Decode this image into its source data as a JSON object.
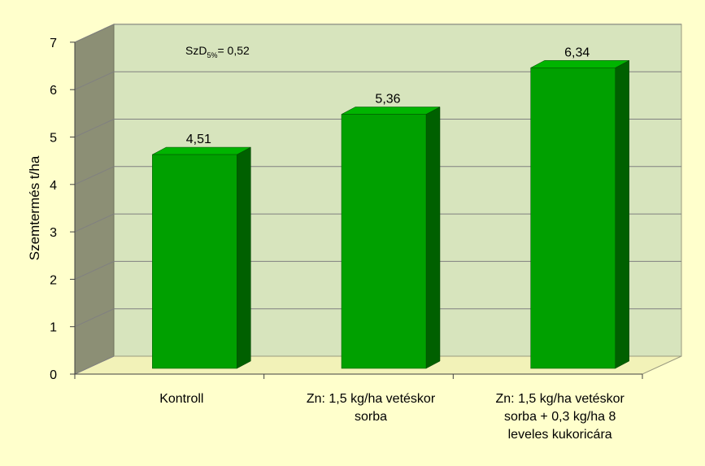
{
  "chart_data": {
    "type": "bar",
    "style": "3d-column",
    "title": "",
    "ylabel": "Szemtermés t/ha",
    "xlabel": "",
    "ylim": [
      0,
      7
    ],
    "yticks": [
      "0",
      "1",
      "2",
      "3",
      "4",
      "5",
      "6",
      "7"
    ],
    "grid": true,
    "legend": "none",
    "categories": [
      [
        "Kontroll"
      ],
      [
        "Zn: 1,5 kg/ha vetéskor",
        "sorba"
      ],
      [
        "Zn: 1,5 kg/ha vetéskor",
        "sorba + 0,3 kg/ha 8",
        "leveles kukoricára"
      ]
    ],
    "values": [
      4.51,
      5.36,
      6.34
    ],
    "value_labels": [
      "4,51",
      "5,36",
      "6,34"
    ],
    "annotation": {
      "main": "SzD",
      "sub": "5%",
      "rest": "= 0,52"
    },
    "colors": {
      "background": "#FFFFCC",
      "plot_wall": "#D7E4BD",
      "side_wall": "#8C8F75",
      "floor": "#F2F2B8",
      "bar_front": "#00A000",
      "bar_side": "#006000",
      "bar_top": "#00B400",
      "grid": "#808080"
    }
  }
}
